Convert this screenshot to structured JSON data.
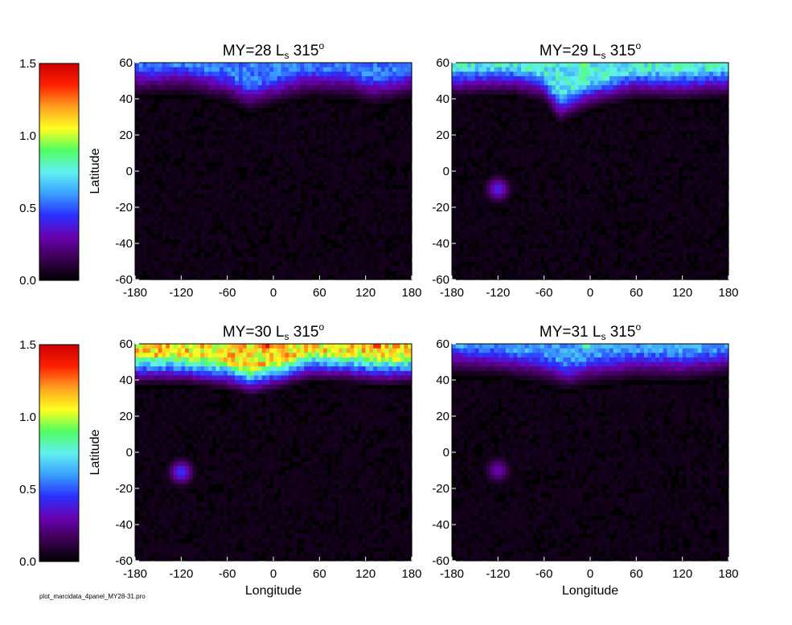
{
  "figure": {
    "footer": "plot_marcidata_4panel_MY28-31.pro"
  },
  "colorbar": {
    "ticks": [
      "0.0",
      "0.5",
      "1.0",
      "1.5"
    ],
    "range": [
      0,
      1.5
    ],
    "colormap": [
      "#000000",
      "#3a0050",
      "#6a00b0",
      "#2a30ff",
      "#3aa0ff",
      "#60f0f0",
      "#50ff60",
      "#ffff20",
      "#ffa020",
      "#ff2000",
      "#cc0000"
    ]
  },
  "chart_data": [
    {
      "type": "heatmap",
      "title": "MY=28 L",
      "title_sub": "s",
      "title_tail": " 315",
      "title_sup": "o",
      "xlabel": "",
      "ylabel": "Latitude",
      "xlim": [
        -180,
        180
      ],
      "ylim": [
        -60,
        60
      ],
      "xticks": [
        -180,
        -120,
        -60,
        0,
        60,
        120,
        180
      ],
      "yticks": [
        -60,
        -40,
        -20,
        0,
        20,
        40,
        60
      ],
      "zlim": [
        0,
        1.5
      ],
      "edge_profile": [
        {
          "lon": -180,
          "lat": 48
        },
        {
          "lon": -120,
          "lat": 50
        },
        {
          "lon": -60,
          "lat": 45
        },
        {
          "lon": -30,
          "lat": 39
        },
        {
          "lon": 0,
          "lat": 43
        },
        {
          "lon": 50,
          "lat": 48
        },
        {
          "lon": 100,
          "lat": 47
        },
        {
          "lon": 130,
          "lat": 43
        },
        {
          "lon": 180,
          "lat": 47
        }
      ],
      "cap_peak": 0.55,
      "hotspots": []
    },
    {
      "type": "heatmap",
      "title": "MY=29 L",
      "title_sub": "s",
      "title_tail": " 315",
      "title_sup": "o",
      "xlabel": "",
      "ylabel": "",
      "xlim": [
        -180,
        180
      ],
      "ylim": [
        -60,
        60
      ],
      "xticks": [
        -180,
        -120,
        -60,
        0,
        60,
        120,
        180
      ],
      "yticks": [
        -60,
        -40,
        -20,
        0,
        20,
        40,
        60
      ],
      "zlim": [
        0,
        1.5
      ],
      "edge_profile": [
        {
          "lon": -180,
          "lat": 48
        },
        {
          "lon": -100,
          "lat": 49
        },
        {
          "lon": -60,
          "lat": 45
        },
        {
          "lon": -40,
          "lat": 33
        },
        {
          "lon": 0,
          "lat": 41
        },
        {
          "lon": 60,
          "lat": 47
        },
        {
          "lon": 120,
          "lat": 46
        },
        {
          "lon": 180,
          "lat": 48
        }
      ],
      "cap_peak": 0.75,
      "hotspots": [
        {
          "lon": -8,
          "lat": 58,
          "value": 0.95
        },
        {
          "lon": 130,
          "lat": 58,
          "value": 0.85
        },
        {
          "lon": -120,
          "lat": -10,
          "value": 0.4
        }
      ]
    },
    {
      "type": "heatmap",
      "title": "MY=30 L",
      "title_sub": "s",
      "title_tail": " 315",
      "title_sup": "o",
      "xlabel": "Longitude",
      "ylabel": "Latitude",
      "xlim": [
        -180,
        180
      ],
      "ylim": [
        -60,
        60
      ],
      "xticks": [
        -180,
        -120,
        -60,
        0,
        60,
        120,
        180
      ],
      "yticks": [
        -60,
        -40,
        -20,
        0,
        20,
        40,
        60
      ],
      "zlim": [
        0,
        1.5
      ],
      "edge_profile": [
        {
          "lon": -180,
          "lat": 45
        },
        {
          "lon": -120,
          "lat": 45
        },
        {
          "lon": -60,
          "lat": 42
        },
        {
          "lon": -30,
          "lat": 38
        },
        {
          "lon": 0,
          "lat": 41
        },
        {
          "lon": 50,
          "lat": 47
        },
        {
          "lon": 100,
          "lat": 46
        },
        {
          "lon": 140,
          "lat": 44
        },
        {
          "lon": 180,
          "lat": 45
        }
      ],
      "cap_peak": 1.1,
      "hotspots": [
        {
          "lon": -8,
          "lat": 60,
          "value": 1.5
        },
        {
          "lon": 135,
          "lat": 60,
          "value": 1.45
        },
        {
          "lon": 160,
          "lat": 60,
          "value": 1.35
        },
        {
          "lon": -120,
          "lat": -11,
          "value": 0.45
        }
      ]
    },
    {
      "type": "heatmap",
      "title": "MY=31 L",
      "title_sub": "s",
      "title_tail": " 315",
      "title_sup": "o",
      "xlabel": "Longitude",
      "ylabel": "",
      "xlim": [
        -180,
        180
      ],
      "ylim": [
        -60,
        60
      ],
      "xticks": [
        -180,
        -120,
        -60,
        0,
        60,
        120,
        180
      ],
      "yticks": [
        -60,
        -40,
        -20,
        0,
        20,
        40,
        60
      ],
      "zlim": [
        0,
        1.5
      ],
      "edge_profile": [
        {
          "lon": -180,
          "lat": 50
        },
        {
          "lon": -120,
          "lat": 49
        },
        {
          "lon": -60,
          "lat": 45
        },
        {
          "lon": -30,
          "lat": 41
        },
        {
          "lon": 0,
          "lat": 44
        },
        {
          "lon": 60,
          "lat": 47
        },
        {
          "lon": 120,
          "lat": 46
        },
        {
          "lon": 180,
          "lat": 49
        }
      ],
      "cap_peak": 0.6,
      "hotspots": [
        {
          "lon": -5,
          "lat": 60,
          "value": 0.9
        },
        {
          "lon": -120,
          "lat": -10,
          "value": 0.3
        }
      ]
    }
  ]
}
